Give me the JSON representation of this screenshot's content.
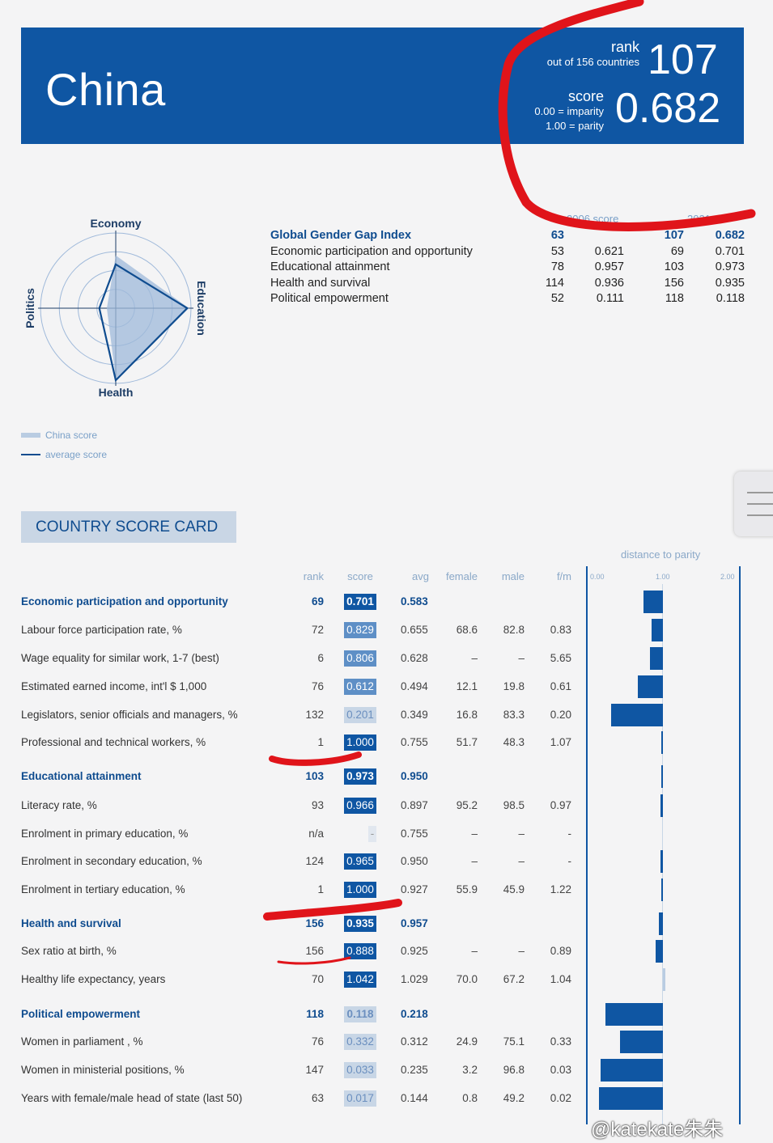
{
  "header": {
    "country": "China",
    "rank_word": "rank",
    "rank_sub": "out of 156 countries",
    "rank_value": "107",
    "score_word": "score",
    "score_sub1": "0.00 = imparity",
    "score_sub2": "1.00 = parity",
    "score_value": "0.682"
  },
  "colors": {
    "brand": "#0f56a3",
    "annotation": "#e0141a"
  },
  "radar": {
    "axes": [
      "Economy",
      "Education",
      "Health",
      "Politics"
    ],
    "china_score": [
      0.701,
      0.973,
      0.935,
      0.118
    ],
    "average_score": [
      0.583,
      0.95,
      0.957,
      0.218
    ],
    "legend": {
      "china": "China score",
      "average": "average score"
    }
  },
  "summary": {
    "col_2006": "2006 score",
    "col_2021": "2021",
    "rows": [
      {
        "label": "Global Gender Gap Index",
        "rank2006": "63",
        "score2006": "",
        "rank2021": "107",
        "score2021": "0.682"
      },
      {
        "label": "Economic participation and opportunity",
        "rank2006": "53",
        "score2006": "0.621",
        "rank2021": "69",
        "score2021": "0.701"
      },
      {
        "label": "Educational attainment",
        "rank2006": "78",
        "score2006": "0.957",
        "rank2021": "103",
        "score2021": "0.973"
      },
      {
        "label": "Health and survival",
        "rank2006": "114",
        "score2006": "0.936",
        "rank2021": "156",
        "score2021": "0.935"
      },
      {
        "label": "Political empowerment",
        "rank2006": "52",
        "score2006": "0.111",
        "rank2021": "118",
        "score2021": "0.118"
      }
    ]
  },
  "scorecard": {
    "title": "COUNTRY SCORE CARD",
    "columns": {
      "rank": "rank",
      "score": "score",
      "avg": "avg",
      "female": "female",
      "male": "male",
      "fm": "f/m"
    },
    "dtp": {
      "title": "distance to parity",
      "t0": "0.00",
      "t1": "1.00",
      "t2": "2.00"
    },
    "rows": [
      {
        "label": "Economic participation and opportunity",
        "cat": true,
        "rank": "69",
        "score": "0.701",
        "avg": "0.583",
        "female": "",
        "male": "",
        "fm": "",
        "v": 0.701,
        "shade": "dark"
      },
      {
        "label": "Labour force participation rate, %",
        "rank": "72",
        "score": "0.829",
        "avg": "0.655",
        "female": "68.6",
        "male": "82.8",
        "fm": "0.83",
        "v": 0.829,
        "shade": "mid"
      },
      {
        "label": "Wage equality for similar work, 1-7 (best)",
        "rank": "6",
        "score": "0.806",
        "avg": "0.628",
        "female": "–",
        "male": "–",
        "fm": "5.65",
        "v": 0.806,
        "shade": "mid"
      },
      {
        "label": "Estimated earned income, int'l $ 1,000",
        "rank": "76",
        "score": "0.612",
        "avg": "0.494",
        "female": "12.1",
        "male": "19.8",
        "fm": "0.61",
        "v": 0.612,
        "shade": "mid"
      },
      {
        "label": "Legislators, senior officials and managers, %",
        "rank": "132",
        "score": "0.201",
        "avg": "0.349",
        "female": "16.8",
        "male": "83.3",
        "fm": "0.20",
        "v": 0.201,
        "shade": "light"
      },
      {
        "label": "Professional and technical workers, %",
        "rank": "1",
        "score": "1.000",
        "avg": "0.755",
        "female": "51.7",
        "male": "48.3",
        "fm": "1.07",
        "v": 1.0,
        "shade": "dark"
      },
      {
        "label": "Educational attainment",
        "cat": true,
        "rank": "103",
        "score": "0.973",
        "avg": "0.950",
        "female": "",
        "male": "",
        "fm": "",
        "v": 0.973,
        "shade": "dark"
      },
      {
        "label": "Literacy rate, %",
        "rank": "93",
        "score": "0.966",
        "avg": "0.897",
        "female": "95.2",
        "male": "98.5",
        "fm": "0.97",
        "v": 0.966,
        "shade": "dark"
      },
      {
        "label": "Enrolment in primary education, %",
        "rank": "n/a",
        "score": "-",
        "avg": "0.755",
        "female": "–",
        "male": "–",
        "fm": "-",
        "v": null,
        "shade": "pale"
      },
      {
        "label": "Enrolment in secondary education, %",
        "rank": "124",
        "score": "0.965",
        "avg": "0.950",
        "female": "–",
        "male": "–",
        "fm": "-",
        "v": 0.965,
        "shade": "dark"
      },
      {
        "label": "Enrolment in tertiary education, %",
        "rank": "1",
        "score": "1.000",
        "avg": "0.927",
        "female": "55.9",
        "male": "45.9",
        "fm": "1.22",
        "v": 1.0,
        "shade": "dark"
      },
      {
        "label": "Health and survival",
        "cat": true,
        "rank": "156",
        "score": "0.935",
        "avg": "0.957",
        "female": "",
        "male": "",
        "fm": "",
        "v": 0.935,
        "shade": "dark"
      },
      {
        "label": "Sex ratio at birth, %",
        "rank": "156",
        "score": "0.888",
        "avg": "0.925",
        "female": "–",
        "male": "–",
        "fm": "0.89",
        "v": 0.888,
        "shade": "dark"
      },
      {
        "label": "Healthy life expectancy, years",
        "rank": "70",
        "score": "1.042",
        "avg": "1.029",
        "female": "70.0",
        "male": "67.2",
        "fm": "1.04",
        "v": 1.042,
        "shade": "dark"
      },
      {
        "label": "Political empowerment",
        "cat": true,
        "rank": "118",
        "score": "0.118",
        "avg": "0.218",
        "female": "",
        "male": "",
        "fm": "",
        "v": 0.118,
        "shade": "light"
      },
      {
        "label": "Women in parliament , %",
        "rank": "76",
        "score": "0.332",
        "avg": "0.312",
        "female": "24.9",
        "male": "75.1",
        "fm": "0.33",
        "v": 0.332,
        "shade": "light"
      },
      {
        "label": "Women in ministerial positions, %",
        "rank": "147",
        "score": "0.033",
        "avg": "0.235",
        "female": "3.2",
        "male": "96.8",
        "fm": "0.03",
        "v": 0.033,
        "shade": "light"
      },
      {
        "label": "Years with female/male head of state (last 50)",
        "rank": "63",
        "score": "0.017",
        "avg": "0.144",
        "female": "0.8",
        "male": "49.2",
        "fm": "0.02",
        "v": 0.017,
        "shade": "light"
      }
    ]
  },
  "watermark": "@katekate朱朱"
}
